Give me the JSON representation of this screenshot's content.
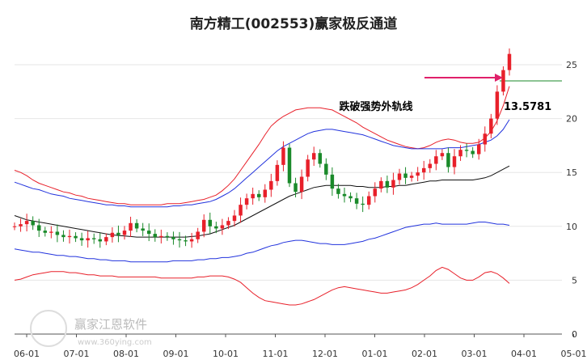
{
  "chart_data": {
    "type": "candlestick-channel",
    "title": "南方精工(002553)赢家极反通道",
    "x_ticks": [
      "06-01",
      "07-01",
      "08-01",
      "09-01",
      "10-01",
      "11-01",
      "12-01",
      "01-01",
      "02-01",
      "03-01",
      "04-01",
      "05-01"
    ],
    "y_ticks": [
      "0",
      "5",
      "10",
      "15",
      "20",
      "25"
    ],
    "ylim": [
      0,
      26.5
    ],
    "annotation": {
      "text": "跌破强势外轨线",
      "value": "13.5781",
      "y": 23.5
    },
    "current_level": 23.5,
    "close": [
      10.0,
      10.2,
      10.5,
      10.1,
      9.6,
      9.4,
      9.5,
      9.2,
      9.0,
      9.1,
      8.9,
      8.7,
      8.9,
      8.8,
      8.6,
      9.0,
      9.4,
      9.2,
      9.6,
      10.3,
      9.8,
      9.6,
      9.3,
      9.0,
      9.1,
      9.0,
      8.8,
      8.7,
      8.6,
      8.8,
      9.5,
      10.6,
      10.0,
      9.8,
      10.1,
      10.5,
      11.0,
      12.0,
      12.6,
      13.0,
      12.7,
      13.4,
      14.2,
      15.7,
      17.3,
      14.0,
      13.2,
      14.6,
      16.2,
      16.8,
      15.8,
      14.8,
      13.5,
      13.0,
      12.8,
      12.6,
      12.1,
      12.0,
      12.8,
      13.5,
      14.2,
      13.6,
      14.3,
      14.9,
      14.5,
      14.7,
      15.0,
      15.4,
      15.8,
      16.5,
      16.8,
      15.5,
      16.5,
      17.1,
      17.0,
      16.7,
      17.6,
      18.6,
      20.0,
      22.5,
      24.5,
      26.0
    ],
    "mid": [
      11.0,
      10.8,
      10.6,
      10.5,
      10.4,
      10.3,
      10.2,
      10.1,
      10.0,
      9.9,
      9.8,
      9.7,
      9.6,
      9.5,
      9.4,
      9.3,
      9.2,
      9.15,
      9.1,
      9.05,
      9.0,
      9.0,
      9.0,
      9.0,
      9.0,
      9.0,
      9.0,
      9.0,
      9.0,
      9.05,
      9.1,
      9.2,
      9.3,
      9.5,
      9.7,
      9.9,
      10.1,
      10.4,
      10.7,
      11.0,
      11.3,
      11.6,
      11.9,
      12.2,
      12.5,
      12.8,
      13.0,
      13.2,
      13.4,
      13.6,
      13.7,
      13.8,
      13.8,
      13.8,
      13.8,
      13.8,
      13.7,
      13.7,
      13.6,
      13.6,
      13.6,
      13.7,
      13.7,
      13.8,
      13.8,
      13.9,
      14.0,
      14.1,
      14.2,
      14.2,
      14.3,
      14.3,
      14.3,
      14.3,
      14.3,
      14.3,
      14.4,
      14.5,
      14.7,
      15.0,
      15.3,
      15.6
    ],
    "upper_blue": [
      14.1,
      13.9,
      13.7,
      13.5,
      13.4,
      13.2,
      13.0,
      12.9,
      12.8,
      12.6,
      12.5,
      12.4,
      12.3,
      12.2,
      12.1,
      12.0,
      12.0,
      11.9,
      11.9,
      11.8,
      11.8,
      11.8,
      11.8,
      11.8,
      11.8,
      11.8,
      11.9,
      11.9,
      12.0,
      12.0,
      12.1,
      12.2,
      12.3,
      12.5,
      12.8,
      13.1,
      13.5,
      14.0,
      14.5,
      15.0,
      15.5,
      16.0,
      16.5,
      17.0,
      17.4,
      17.7,
      18.0,
      18.3,
      18.6,
      18.8,
      18.9,
      19.0,
      19.0,
      18.9,
      18.8,
      18.7,
      18.6,
      18.5,
      18.3,
      18.1,
      17.9,
      17.7,
      17.5,
      17.4,
      17.3,
      17.2,
      17.2,
      17.2,
      17.2,
      17.2,
      17.2,
      17.3,
      17.3,
      17.3,
      17.4,
      17.5,
      17.6,
      17.8,
      18.0,
      18.4,
      19.0,
      19.9
    ],
    "lower_blue": [
      7.9,
      7.8,
      7.7,
      7.6,
      7.6,
      7.5,
      7.4,
      7.3,
      7.3,
      7.2,
      7.2,
      7.1,
      7.0,
      7.0,
      6.9,
      6.9,
      6.8,
      6.8,
      6.8,
      6.7,
      6.7,
      6.7,
      6.7,
      6.7,
      6.7,
      6.7,
      6.8,
      6.8,
      6.8,
      6.8,
      6.9,
      6.9,
      7.0,
      7.0,
      7.1,
      7.1,
      7.2,
      7.3,
      7.5,
      7.6,
      7.8,
      8.0,
      8.2,
      8.3,
      8.5,
      8.6,
      8.7,
      8.7,
      8.6,
      8.5,
      8.4,
      8.4,
      8.3,
      8.3,
      8.3,
      8.4,
      8.5,
      8.6,
      8.8,
      8.9,
      9.1,
      9.3,
      9.5,
      9.7,
      9.9,
      10.0,
      10.1,
      10.2,
      10.2,
      10.3,
      10.2,
      10.2,
      10.2,
      10.2,
      10.2,
      10.3,
      10.4,
      10.4,
      10.3,
      10.2,
      10.2,
      10.1
    ],
    "upper_red": [
      15.2,
      15.0,
      14.7,
      14.3,
      14.0,
      13.8,
      13.6,
      13.4,
      13.2,
      13.1,
      12.9,
      12.8,
      12.6,
      12.5,
      12.4,
      12.3,
      12.2,
      12.1,
      12.1,
      12.0,
      12.0,
      12.0,
      12.0,
      12.0,
      12.0,
      12.1,
      12.1,
      12.1,
      12.2,
      12.3,
      12.4,
      12.5,
      12.7,
      12.9,
      13.3,
      13.8,
      14.4,
      15.2,
      16.0,
      16.8,
      17.6,
      18.5,
      19.3,
      19.8,
      20.2,
      20.5,
      20.8,
      20.9,
      21.0,
      21.0,
      21.0,
      20.9,
      20.8,
      20.5,
      20.2,
      19.9,
      19.6,
      19.2,
      18.9,
      18.6,
      18.3,
      18.0,
      17.8,
      17.6,
      17.4,
      17.3,
      17.2,
      17.3,
      17.5,
      17.8,
      18.0,
      18.1,
      18.0,
      17.8,
      17.7,
      17.7,
      17.8,
      18.2,
      18.8,
      19.8,
      21.2,
      23.0
    ],
    "lower_red": [
      5.0,
      5.1,
      5.3,
      5.5,
      5.6,
      5.7,
      5.8,
      5.8,
      5.8,
      5.7,
      5.7,
      5.6,
      5.5,
      5.5,
      5.4,
      5.4,
      5.4,
      5.3,
      5.3,
      5.3,
      5.3,
      5.3,
      5.3,
      5.3,
      5.2,
      5.2,
      5.2,
      5.2,
      5.2,
      5.2,
      5.3,
      5.3,
      5.4,
      5.4,
      5.4,
      5.3,
      5.1,
      4.8,
      4.3,
      3.8,
      3.4,
      3.1,
      3.0,
      2.9,
      2.8,
      2.7,
      2.7,
      2.8,
      3.0,
      3.2,
      3.5,
      3.8,
      4.1,
      4.3,
      4.4,
      4.3,
      4.2,
      4.1,
      4.0,
      3.9,
      3.8,
      3.8,
      3.9,
      4.0,
      4.1,
      4.3,
      4.6,
      5.0,
      5.4,
      5.9,
      6.2,
      6.0,
      5.6,
      5.2,
      5.0,
      5.0,
      5.3,
      5.7,
      5.8,
      5.6,
      5.2,
      4.7
    ]
  },
  "watermark": {
    "cn": "赢家江恩软件",
    "url": "www.360ying.com"
  },
  "colors": {
    "up": "#e8202a",
    "down": "#1a8a2a",
    "mid": "#111111",
    "blue": "#2233dd",
    "red": "#e8202a",
    "arrow": "#e0206a",
    "level": "#1a8a2a"
  }
}
